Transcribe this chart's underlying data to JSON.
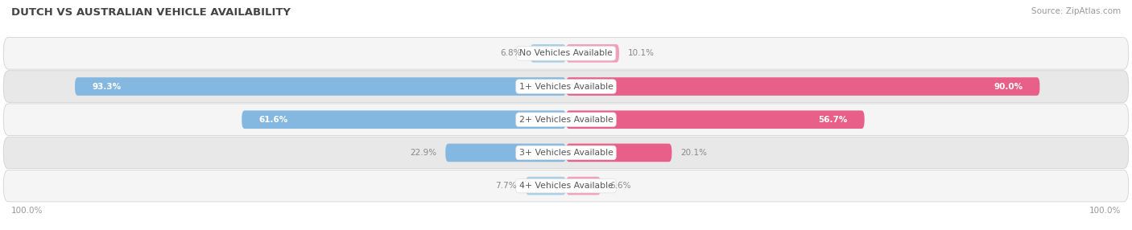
{
  "title": "DUTCH VS AUSTRALIAN VEHICLE AVAILABILITY",
  "source": "Source: ZipAtlas.com",
  "categories": [
    "No Vehicles Available",
    "1+ Vehicles Available",
    "2+ Vehicles Available",
    "3+ Vehicles Available",
    "4+ Vehicles Available"
  ],
  "dutch_values": [
    6.8,
    93.3,
    61.6,
    22.9,
    7.7
  ],
  "australian_values": [
    10.1,
    90.0,
    56.7,
    20.1,
    6.6
  ],
  "dutch_bar_color": "#85b8e0",
  "australian_bar_color_strong": "#e8608a",
  "australian_bar_color_light": "#f2a0ba",
  "dutch_bar_color_light": "#a8cfe8",
  "row_bg_light": "#f5f5f5",
  "row_bg_dark": "#e8e8e8",
  "title_color": "#444444",
  "source_color": "#999999",
  "value_color_inside": "#ffffff",
  "value_color_outside": "#888888",
  "label_color": "#555555",
  "fig_width": 14.06,
  "fig_height": 2.86,
  "dpi": 100
}
